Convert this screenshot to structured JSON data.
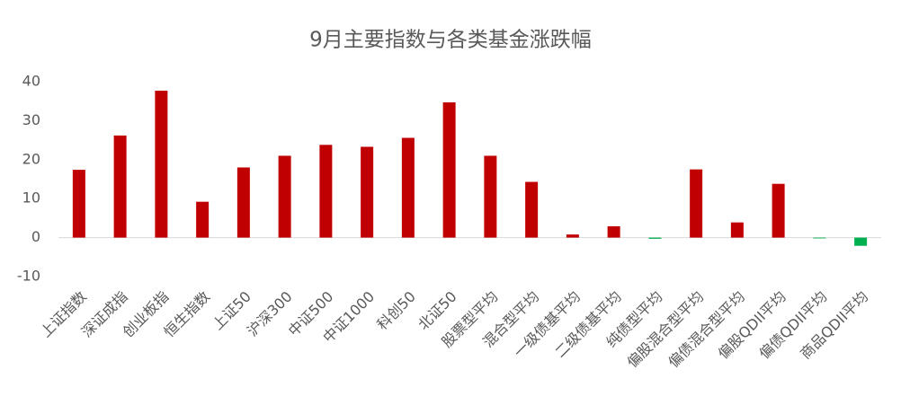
{
  "chart_data": {
    "type": "bar",
    "title": "9月主要指数与各类基金涨跌幅",
    "categories": [
      "上证指数",
      "深证成指",
      "创业板指",
      "恒生指数",
      "上证50",
      "沪深300",
      "中证500",
      "中证1000",
      "科创50",
      "北证50",
      "股票型平均",
      "混合型平均",
      "一级债基平均",
      "二级债基平均",
      "纯债型平均",
      "偏股混合型平均",
      "偏债混合型平均",
      "偏股QDII平均",
      "偏债QDII平均",
      "商品QDII平均"
    ],
    "values": [
      17.4,
      26.2,
      37.7,
      9.2,
      18.0,
      21.0,
      23.8,
      23.3,
      25.6,
      34.7,
      21.0,
      14.3,
      0.8,
      2.9,
      -0.3,
      17.5,
      3.9,
      13.8,
      -0.2,
      -2.1
    ],
    "color": "#c00000",
    "negative_color": "#00b050",
    "ylim": [
      -10,
      40
    ],
    "yticks": [
      -10,
      0,
      10,
      20,
      30,
      40
    ],
    "grid": false
  }
}
